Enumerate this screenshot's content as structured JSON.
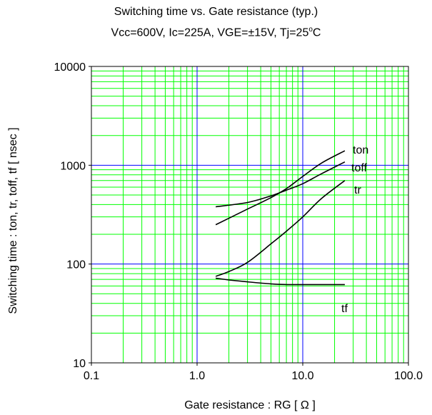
{
  "chart_data": {
    "type": "line",
    "title": "Switching time vs. Gate resistance (typ.)",
    "subtitle_parts": {
      "main": "Vcc=600V, Ic=225A, VGE=±15V,  Tj=25",
      "superscript": "o",
      "suffix": "C"
    },
    "xlabel": "Gate resistance : RG [ Ω ]",
    "ylabel": "Switching time : ton, tr, toff, tf [ nsec ]",
    "x_scale": "log",
    "y_scale": "log",
    "xlim": [
      0.1,
      100
    ],
    "ylim": [
      10,
      10000
    ],
    "x_ticks": [
      0.1,
      1,
      10,
      100
    ],
    "x_tick_labels": [
      "0.1",
      "1.0",
      "10.0",
      "100.0"
    ],
    "y_ticks": [
      10,
      100,
      1000,
      10000
    ],
    "y_tick_labels": [
      "10",
      "100",
      "1000",
      "10000"
    ],
    "grid": true,
    "series": [
      {
        "name": "ton",
        "x": [
          1.5,
          3,
          5,
          7,
          10,
          15,
          25
        ],
        "y": [
          250,
          360,
          470,
          580,
          770,
          1050,
          1400
        ]
      },
      {
        "name": "toff",
        "x": [
          1.5,
          3,
          5,
          7,
          10,
          15,
          25
        ],
        "y": [
          380,
          420,
          490,
          560,
          650,
          820,
          1080
        ]
      },
      {
        "name": "tr",
        "x": [
          1.5,
          2,
          3,
          5,
          7,
          10,
          15,
          25
        ],
        "y": [
          75,
          84,
          104,
          160,
          215,
          300,
          460,
          700
        ]
      },
      {
        "name": "tf",
        "x": [
          1.5,
          2,
          3,
          5,
          7,
          10,
          15,
          25
        ],
        "y": [
          72,
          69,
          66,
          63,
          62,
          62,
          62,
          62
        ]
      }
    ]
  },
  "colors": {
    "major_grid": "#0000ff",
    "minor_grid": "#00ff00",
    "line": "#000000"
  }
}
